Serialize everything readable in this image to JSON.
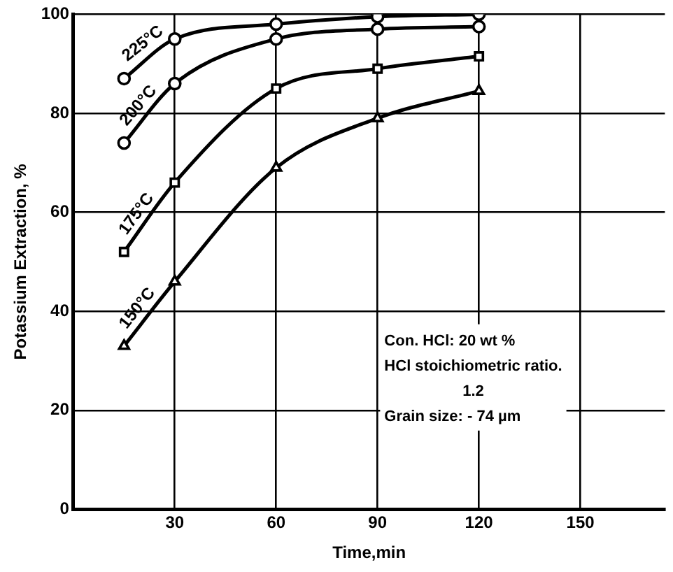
{
  "chart_data": {
    "type": "line",
    "xlabel": "Time,min",
    "ylabel": "Potassium Extraction, %",
    "x": [
      15,
      30,
      60,
      90,
      120
    ],
    "series": [
      {
        "name": "225°C",
        "color": "#000000",
        "marker": "circle",
        "values": [
          87,
          95,
          98,
          99.5,
          100
        ]
      },
      {
        "name": "200°C",
        "color": "#000000",
        "marker": "circle",
        "values": [
          74,
          86,
          95,
          97,
          97.5
        ]
      },
      {
        "name": "175°C",
        "color": "#000000",
        "marker": "square",
        "values": [
          52,
          66,
          85,
          89,
          91.5
        ]
      },
      {
        "name": "150°C",
        "color": "#000000",
        "marker": "triangle",
        "values": [
          33,
          46,
          69,
          79,
          84.5
        ]
      }
    ],
    "xlim": [
      0,
      175
    ],
    "xticks": [
      30,
      60,
      90,
      120,
      150
    ],
    "ylim": [
      0,
      100
    ],
    "yticks": [
      0,
      20,
      40,
      60,
      80,
      100
    ],
    "grid": true,
    "legend": false,
    "annotations": [
      "Con. HCl: 20 wt %",
      "HCl stoichiometric ratio.",
      "1.2",
      "Grain size: - 74 µm"
    ]
  }
}
